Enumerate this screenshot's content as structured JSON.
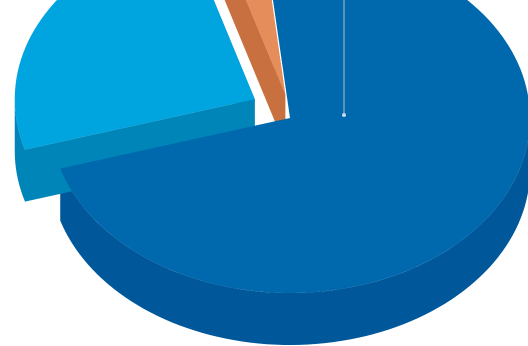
{
  "chart_data": {
    "type": "pie",
    "variant": "3d-exploded",
    "title": "",
    "slices": [
      {
        "label": "",
        "value": 72,
        "color": "#0068AC",
        "side_color": "#00579A",
        "leader_line": true
      },
      {
        "label": "",
        "value": 25,
        "color": "#00A4DF",
        "side_color": "#0085B8",
        "exploded": true
      },
      {
        "label": "",
        "value": 3,
        "color": "#E58E5B",
        "side_color": "#C8703F",
        "exploded": true
      }
    ],
    "legend": "none"
  }
}
